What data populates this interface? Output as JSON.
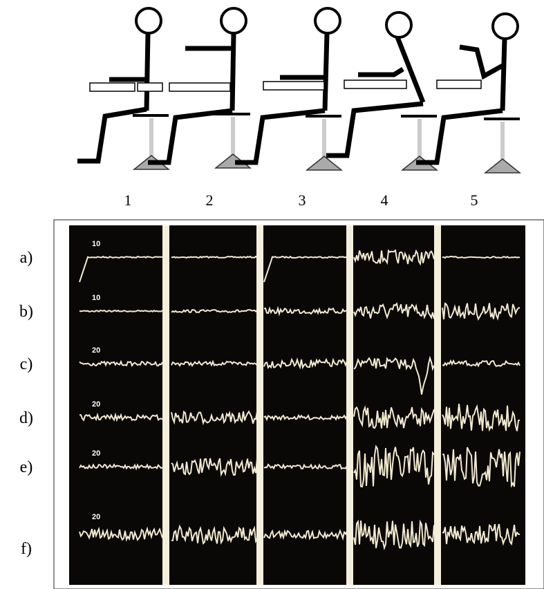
{
  "postures": {
    "labels": [
      "1",
      "2",
      "3",
      "4",
      "5"
    ]
  },
  "recordings": {
    "rows": [
      {
        "label": "a)",
        "scale": "10"
      },
      {
        "label": "b)",
        "scale": "10"
      },
      {
        "label": "c)",
        "scale": "20"
      },
      {
        "label": "d)",
        "scale": "20"
      },
      {
        "label": "e)",
        "scale": "20"
      },
      {
        "label": "f)",
        "scale": "20"
      }
    ]
  }
}
